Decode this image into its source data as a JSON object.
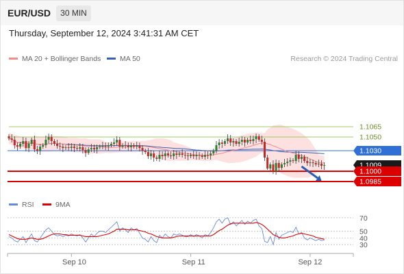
{
  "header": {
    "symbol": "EUR/USD",
    "timeframe": "30 MIN",
    "datetime": "Thursday, September 12, 2024 3:41:31 AM CET"
  },
  "copyright": "Research © 2024 Trading Central",
  "legend": {
    "ma20": "MA 20 + Bollinger Bands",
    "ma50": "MA 50",
    "rsi": "RSI",
    "rsi_ma": "9MA"
  },
  "colors": {
    "candle_up": "#2e7d32",
    "candle_down": "#c62828",
    "ma20": "#f28b8b",
    "bollinger_fill": "#fde0e0",
    "ma50": "#3a5fb0",
    "support": "#dd0000",
    "resistance": "#9ccc65",
    "pivot": "#2f6fd6",
    "rsi": "#6688dd",
    "rsi_ma": "#dd0000",
    "arrow": "#2560b0"
  },
  "chart_data": {
    "type": "candlestick",
    "ylim": [
      1.0975,
      1.113
    ],
    "x_ticks": [
      "Sep 10",
      "Sep 11",
      "Sep 12"
    ],
    "levels": [
      {
        "label": "1.1065",
        "value": 1.1065,
        "kind": "resistance"
      },
      {
        "label": "1.1050",
        "value": 1.105,
        "kind": "resistance"
      },
      {
        "label": "1.1030",
        "value": 1.103,
        "kind": "pivot"
      },
      {
        "label": "1.1009",
        "value": 1.1009,
        "kind": "last_price"
      },
      {
        "label": "1.1000",
        "value": 1.1,
        "kind": "support"
      },
      {
        "label": "1.0985",
        "value": 1.0985,
        "kind": "support"
      }
    ],
    "forecast_arrow": {
      "from_bar": 103,
      "from_value": 1.1007,
      "to_bar": 110,
      "to_value": 1.0986
    },
    "closes": [
      1.1048,
      1.1046,
      1.1038,
      1.1036,
      1.104,
      1.1044,
      1.1034,
      1.104,
      1.1046,
      1.1032,
      1.103,
      1.1036,
      1.1038,
      1.1046,
      1.105,
      1.1044,
      1.104,
      1.1037,
      1.1036,
      1.1034,
      1.1035,
      1.1034,
      1.1036,
      1.1034,
      1.1033,
      1.1035,
      1.1031,
      1.1027,
      1.1032,
      1.1034,
      1.1032,
      1.1035,
      1.1036,
      1.1037,
      1.1036,
      1.1038,
      1.104,
      1.1042,
      1.1046,
      1.1036,
      1.1038,
      1.1037,
      1.1035,
      1.1038,
      1.1036,
      1.1037,
      1.1034,
      1.103,
      1.1028,
      1.1022,
      1.1026,
      1.102,
      1.1018,
      1.1024,
      1.1022,
      1.1026,
      1.1023,
      1.1022,
      1.1026,
      1.1024,
      1.1026,
      1.1024,
      1.1023,
      1.1022,
      1.1024,
      1.1022,
      1.1024,
      1.1023,
      1.1021,
      1.1024,
      1.1023,
      1.1026,
      1.103,
      1.1038,
      1.1042,
      1.104,
      1.1044,
      1.1048,
      1.1042,
      1.1044,
      1.104,
      1.1043,
      1.1046,
      1.1042,
      1.1046,
      1.1044,
      1.1047,
      1.1051,
      1.1046,
      1.1043,
      1.102,
      1.1004,
      1.101,
      1.1,
      1.1012,
      1.1005,
      1.101,
      1.1012,
      1.1014,
      1.1016,
      1.1015,
      1.1024,
      1.1018,
      1.1021,
      1.1015,
      1.1012,
      1.1013,
      1.1012,
      1.101,
      1.1011,
      1.1008,
      1.1009
    ],
    "rsi": {
      "ticks": [
        70,
        50,
        40,
        30
      ],
      "ylim": [
        20,
        75
      ],
      "values": [
        42,
        40,
        36,
        34,
        38,
        42,
        33,
        40,
        46,
        36,
        34,
        40,
        46,
        52,
        55,
        50,
        45,
        43,
        44,
        42,
        44,
        43,
        46,
        44,
        43,
        45,
        40,
        34,
        40,
        46,
        42,
        47,
        50,
        50,
        48,
        52,
        56,
        60,
        64,
        50,
        55,
        52,
        48,
        55,
        52,
        54,
        47,
        40,
        38,
        34,
        42,
        36,
        33,
        44,
        40,
        46,
        42,
        40,
        46,
        44,
        46,
        44,
        42,
        42,
        45,
        42,
        45,
        43,
        40,
        45,
        43,
        48,
        55,
        64,
        68,
        62,
        68,
        70,
        60,
        64,
        58,
        62,
        66,
        60,
        65,
        62,
        66,
        68,
        58,
        54,
        35,
        33,
        42,
        30,
        48,
        38,
        44,
        46,
        48,
        50,
        48,
        56,
        46,
        48,
        40,
        37,
        40,
        38,
        36,
        38,
        36,
        37
      ],
      "ma_values": [
        45,
        43,
        41,
        39,
        38,
        38,
        38,
        39,
        40,
        39,
        38,
        38,
        39,
        41,
        43,
        45,
        46,
        46,
        46,
        45,
        45,
        44,
        44,
        44,
        44,
        44,
        43,
        42,
        42,
        42,
        42,
        42,
        43,
        44,
        45,
        46,
        48,
        50,
        53,
        53,
        53,
        53,
        52,
        52,
        52,
        52,
        51,
        50,
        49,
        47,
        46,
        44,
        42,
        41,
        40,
        40,
        40,
        40,
        41,
        42,
        43,
        43,
        43,
        43,
        43,
        43,
        43,
        43,
        43,
        43,
        43,
        43,
        45,
        48,
        51,
        53,
        56,
        59,
        61,
        62,
        62,
        62,
        62,
        62,
        62,
        62,
        62,
        63,
        62,
        60,
        57,
        53,
        49,
        45,
        43,
        41,
        40,
        40,
        41,
        42,
        43,
        45,
        46,
        47,
        46,
        45,
        44,
        43,
        41,
        40,
        39,
        38
      ]
    }
  }
}
